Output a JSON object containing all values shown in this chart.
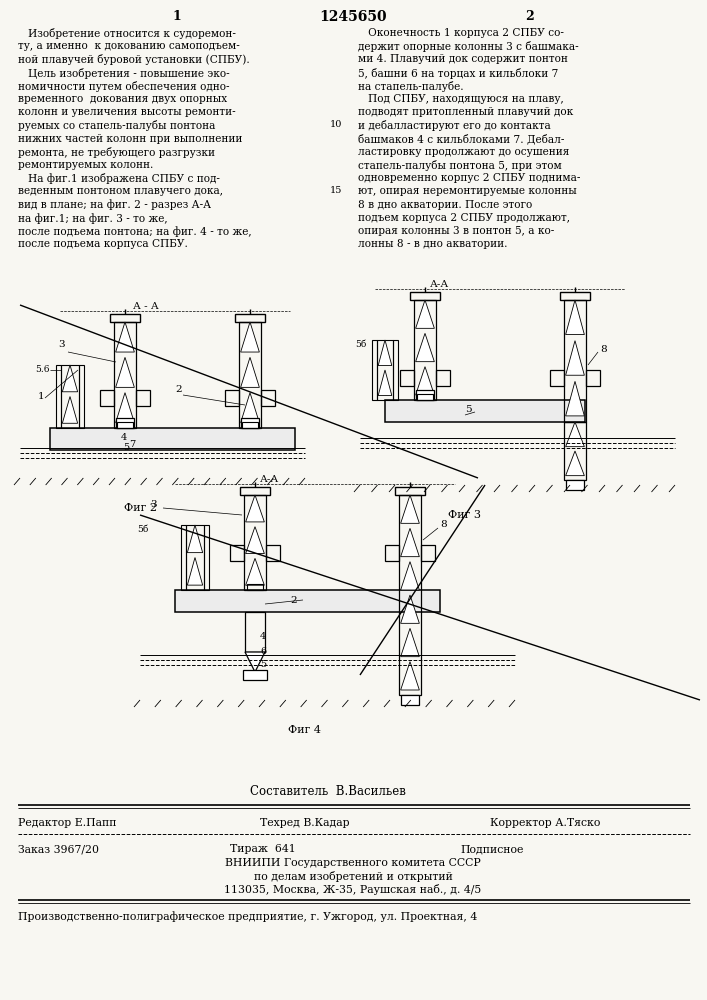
{
  "bg_color": "#f8f7f2",
  "paper_color": "#f8f7f2",
  "title_text": "1245650",
  "page_num_left": "1",
  "page_num_right": "2",
  "left_column_text": [
    "   Изобретение относится к судоремон-",
    "ту, а именно  к докованию самоподъем-",
    "ной плавучей буровой установки (СПБУ).",
    "   Цель изобретения - повышение эко-",
    "номичности путем обеспечения одно-",
    "временного  докования двух опорных",
    "колонн и увеличения высоты ремонти-",
    "руемых со стапель-палубы понтона",
    "нижних частей колонн при выполнении",
    "ремонта, не требующего разгрузки",
    "ремонтируемых колонн.",
    "   На фиг.1 изображена СПБУ с под-",
    "веденным понтоном плавучего дока,",
    "вид в плане; на фиг. 2 - разрез А-А",
    "на фиг.1; на фиг. 3 - то же,",
    "после подъема понтона; на фиг. 4 - то же,",
    "после подъема корпуса СПБУ."
  ],
  "right_column_text": [
    "   Оконечность 1 корпуса 2 СПБУ со-",
    "держит опорные колонны 3 с башмака-",
    "ми 4. Плавучий док содержит понтон",
    "5, башни 6 на торцах и кильблоки 7",
    "на стапель-палубе.",
    "   Под СПБУ, находящуюся на плаву,",
    "подводят притопленный плавучий док",
    "и дебалластируют его до контакта",
    "башмаков 4 с кильблоками 7. Дебал-",
    "ластировку продолжают до осушения",
    "стапель-палубы понтона 5, при этом",
    "одновременно корпус 2 СПБУ поднима-",
    "ют, опирая неремонтируемые колонны",
    "8 в дно акватории. После этого",
    "подъем корпуса 2 СПБУ продолжают,",
    "опирая колонны 3 в понтон 5, а ко-",
    "лонны 8 - в дно акватории."
  ],
  "composer_text": "Составитель  В.Васильев",
  "editor_text": "Редактор Е.Папп",
  "techred_text": "Техред В.Кадар",
  "corrector_text": "Корректор А.Тяско",
  "order_text": "Заказ 3967/20",
  "tirazh_text": "Тираж  641",
  "podpisnoe_text": "Подписное",
  "vniiipi_text": "ВНИИПИ Государственного комитета СССР",
  "affairs_text": "по делам изобретений и открытий",
  "address_text": "113035, Москва, Ж-35, Раушская наб., д. 4/5",
  "printer_text": "Производственно-полиграфическое предприятие, г. Ужгород, ул. Проектная, 4"
}
